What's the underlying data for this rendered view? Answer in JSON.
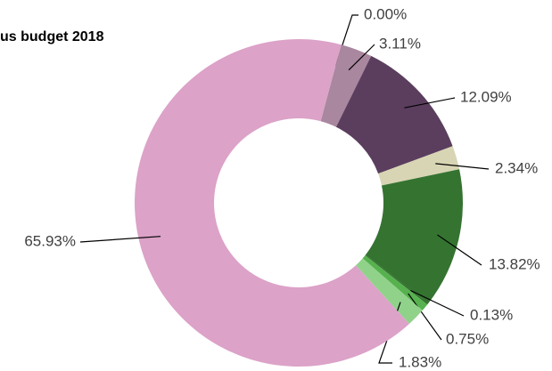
{
  "chart_data": {
    "type": "donut",
    "title": "us budget 2018",
    "values": [
      0,
      3.11,
      12.09,
      2.34,
      13.82,
      0.13,
      0.75,
      1.83,
      65.93
    ],
    "value_labels": [
      "0.00%",
      "3.11%",
      "12.09%",
      "2.34%",
      "13.82%",
      "0.13%",
      "0.75%",
      "1.83%",
      "65.93%"
    ],
    "colors": [
      "#a0849b",
      "#a9879f",
      "#5b3e5e",
      "#d8d5b4",
      "#357331",
      "#2b6a26",
      "#57b14f",
      "#91d28b",
      "#dca2c8"
    ]
  }
}
